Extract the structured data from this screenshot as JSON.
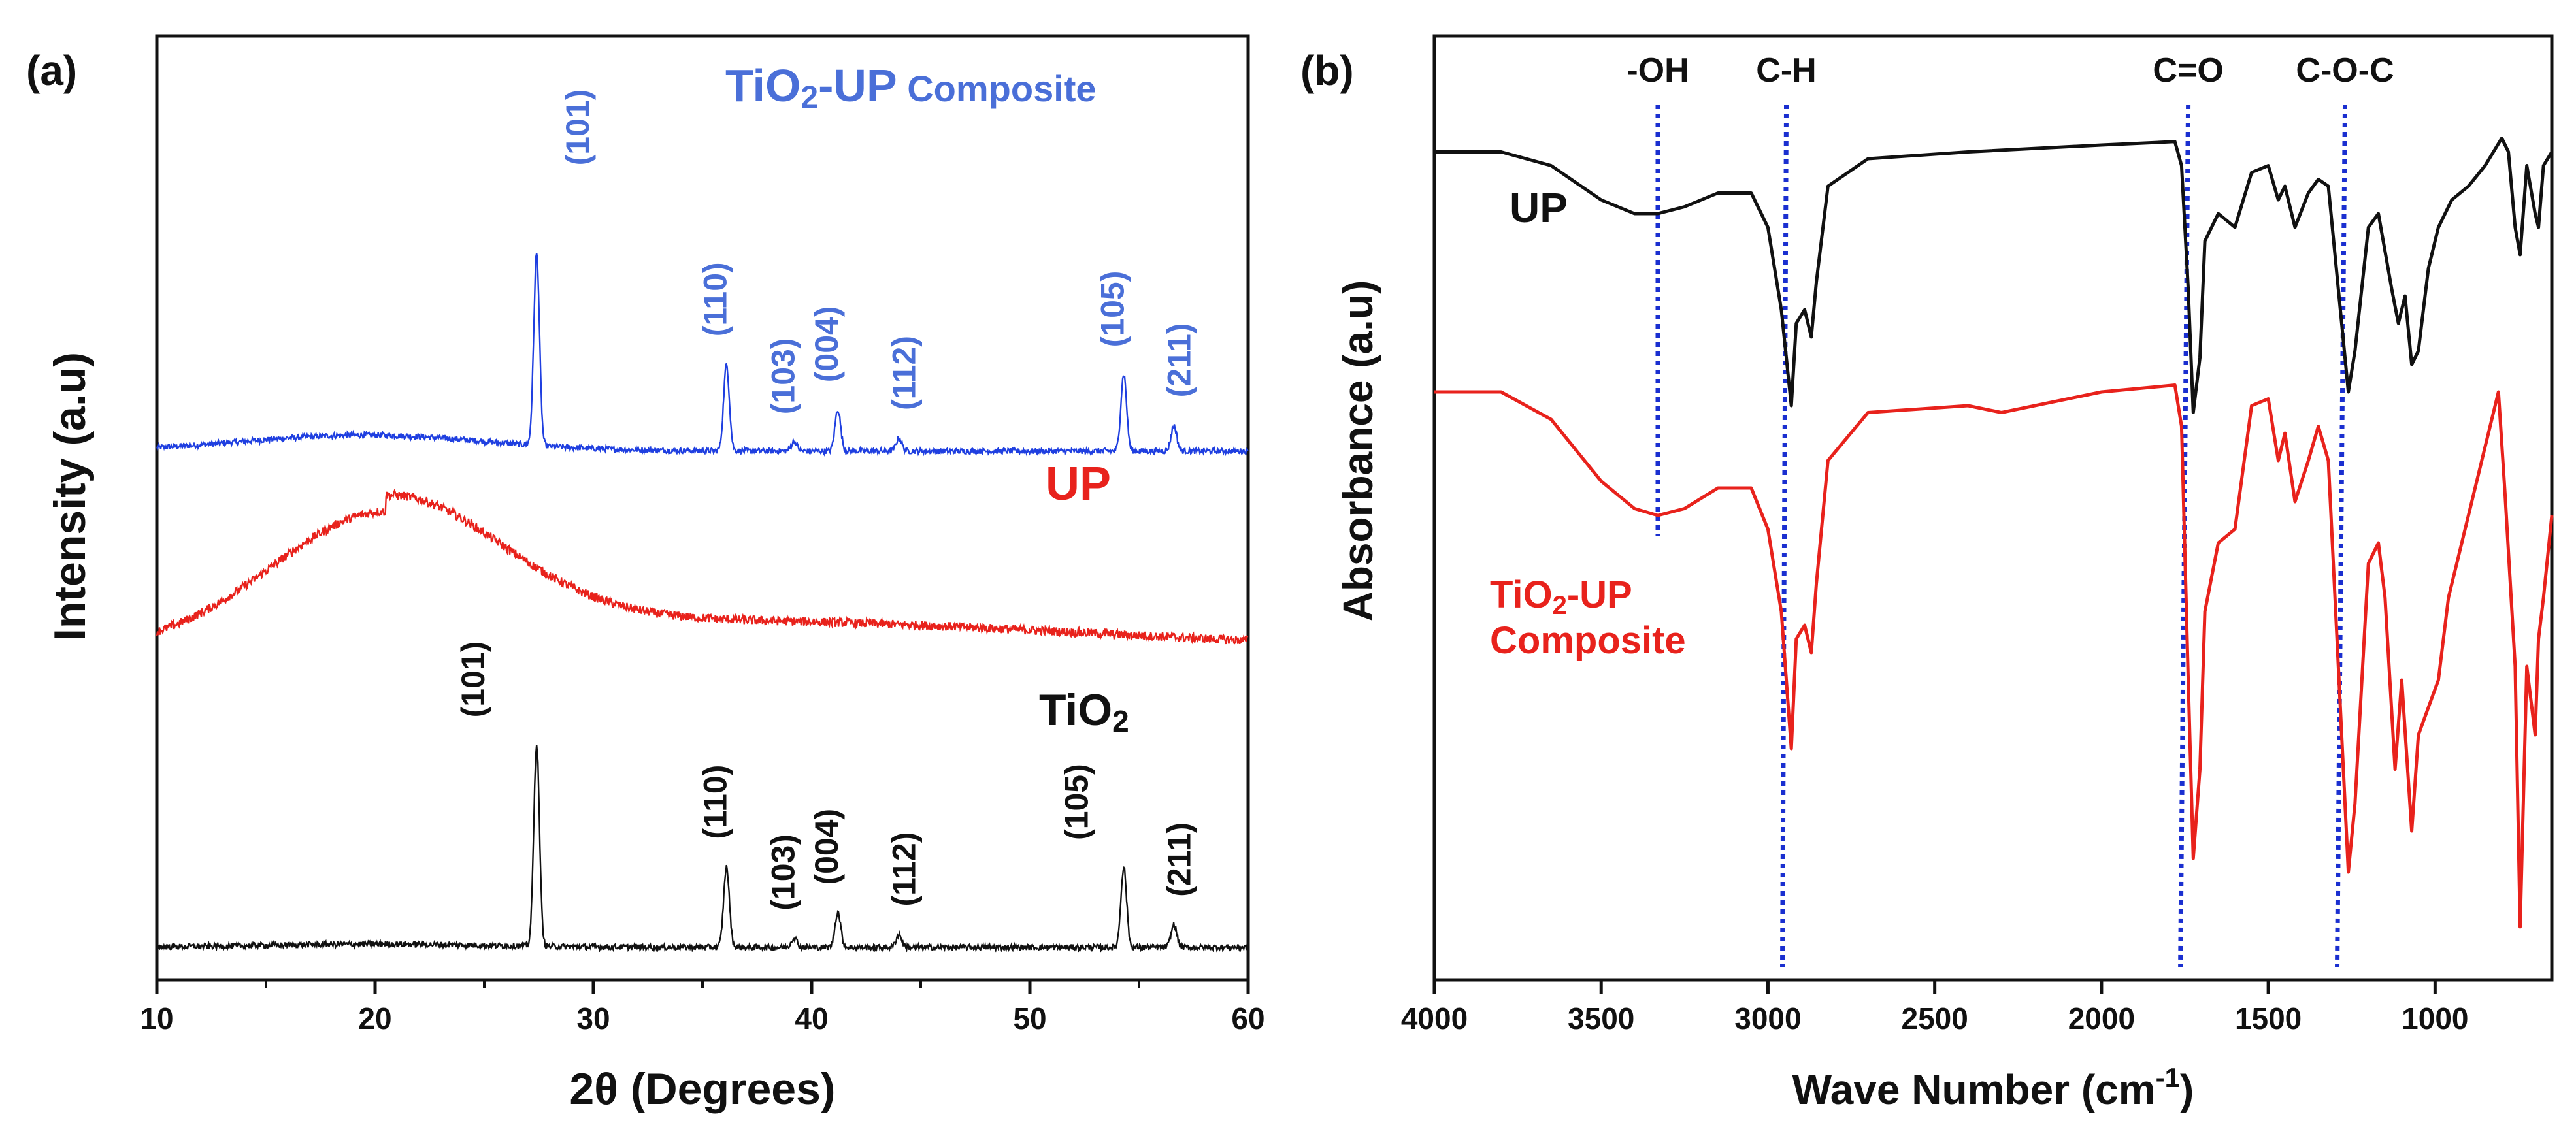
{
  "chart_data": [
    {
      "type": "line",
      "panel_label": "(a)",
      "title": "",
      "xlabel": "2θ (Degrees)",
      "ylabel": "Intensity (a.u)",
      "xlim": [
        10,
        60
      ],
      "xticks": [
        10,
        20,
        30,
        40,
        50,
        60
      ],
      "y_scale": "arbitrary units, curves stacked with vertical offsets",
      "series": [
        {
          "name": "TiO2-UP Composite",
          "color": "#1f3fe0",
          "label_color": "#4a6fd8",
          "offset": 1.55,
          "hump": {
            "center": 19.5,
            "height": 0.05,
            "width": 5.5
          },
          "peaks": [
            {
              "x": 27.4,
              "height": 0.6,
              "hkl": "(101)"
            },
            {
              "x": 36.1,
              "height": 0.27,
              "hkl": "(110)"
            },
            {
              "x": 39.2,
              "height": 0.03,
              "hkl": "(103)"
            },
            {
              "x": 41.2,
              "height": 0.13,
              "hkl": "(004)"
            },
            {
              "x": 44.0,
              "height": 0.04,
              "hkl": "(112)"
            },
            {
              "x": 54.3,
              "height": 0.24,
              "hkl": "(105)"
            },
            {
              "x": 56.6,
              "height": 0.08,
              "hkl": "(211)"
            }
          ]
        },
        {
          "name": "UP",
          "color": "#e8221c",
          "label_color": "#e8221c",
          "offset": 0.92,
          "hump": {
            "center": 20.5,
            "height": 0.42,
            "width": 5.2
          },
          "tail": {
            "height": 0.1,
            "center": 35,
            "width": 18
          },
          "peaks": []
        },
        {
          "name": "TiO2",
          "color": "#111111",
          "label_color": "#111111",
          "offset": 0.0,
          "hump": {
            "center": 20,
            "height": 0.01,
            "width": 5
          },
          "peaks": [
            {
              "x": 27.4,
              "height": 0.63,
              "hkl": "(101)"
            },
            {
              "x": 36.1,
              "height": 0.25,
              "hkl": "(110)"
            },
            {
              "x": 39.2,
              "height": 0.03,
              "hkl": "(103)"
            },
            {
              "x": 41.2,
              "height": 0.11,
              "hkl": "(004)"
            },
            {
              "x": 44.0,
              "height": 0.04,
              "hkl": "(112)"
            },
            {
              "x": 54.3,
              "height": 0.25,
              "hkl": "(105)"
            },
            {
              "x": 56.6,
              "height": 0.07,
              "hkl": "(211)"
            }
          ]
        }
      ],
      "series_labels": {
        "composite": {
          "main": "TiO",
          "sub": "2",
          "rest": "-UP",
          "small": " Composite"
        },
        "up": "UP",
        "tio2": {
          "main": "TiO",
          "sub": "2"
        }
      }
    },
    {
      "type": "line",
      "panel_label": "(b)",
      "title": "",
      "xlabel": "Wave Number (cm",
      "xlabel_sup": "-1",
      "xlabel_close": ")",
      "ylabel": "Absorbance (a.u)",
      "xlim": [
        4000,
        650
      ],
      "xticks": [
        4000,
        3500,
        3000,
        2500,
        2000,
        1500,
        1000
      ],
      "x_reversed": true,
      "reference_lines": [
        {
          "label": "-OH",
          "x": 3330,
          "color": "#1a2fd0"
        },
        {
          "label": "C-H",
          "x": 2945,
          "color": "#1a2fd0"
        },
        {
          "label": "C=O",
          "x": 1740,
          "color": "#1a2fd0"
        },
        {
          "label": "C-O-C",
          "x": 1270,
          "color": "#1a2fd0"
        }
      ],
      "series": [
        {
          "name": "UP",
          "color": "#111111",
          "baseline": 0.95,
          "points": [
            [
              4000,
              0.95
            ],
            [
              3800,
              0.95
            ],
            [
              3650,
              0.93
            ],
            [
              3500,
              0.88
            ],
            [
              3400,
              0.86
            ],
            [
              3330,
              0.86
            ],
            [
              3250,
              0.87
            ],
            [
              3150,
              0.89
            ],
            [
              3050,
              0.89
            ],
            [
              3000,
              0.84
            ],
            [
              2960,
              0.72
            ],
            [
              2930,
              0.58
            ],
            [
              2915,
              0.7
            ],
            [
              2890,
              0.72
            ],
            [
              2870,
              0.68
            ],
            [
              2855,
              0.76
            ],
            [
              2820,
              0.9
            ],
            [
              2700,
              0.94
            ],
            [
              2400,
              0.95
            ],
            [
              2000,
              0.96
            ],
            [
              1780,
              0.965
            ],
            [
              1760,
              0.93
            ],
            [
              1740,
              0.75
            ],
            [
              1725,
              0.57
            ],
            [
              1705,
              0.65
            ],
            [
              1690,
              0.82
            ],
            [
              1650,
              0.86
            ],
            [
              1600,
              0.84
            ],
            [
              1550,
              0.92
            ],
            [
              1500,
              0.93
            ],
            [
              1470,
              0.88
            ],
            [
              1450,
              0.9
            ],
            [
              1420,
              0.84
            ],
            [
              1380,
              0.89
            ],
            [
              1350,
              0.91
            ],
            [
              1320,
              0.9
            ],
            [
              1290,
              0.75
            ],
            [
              1260,
              0.6
            ],
            [
              1240,
              0.66
            ],
            [
              1200,
              0.84
            ],
            [
              1170,
              0.86
            ],
            [
              1130,
              0.75
            ],
            [
              1110,
              0.7
            ],
            [
              1090,
              0.74
            ],
            [
              1070,
              0.64
            ],
            [
              1050,
              0.66
            ],
            [
              1020,
              0.78
            ],
            [
              990,
              0.84
            ],
            [
              950,
              0.88
            ],
            [
              900,
              0.9
            ],
            [
              850,
              0.93
            ],
            [
              800,
              0.97
            ],
            [
              780,
              0.95
            ],
            [
              760,
              0.84
            ],
            [
              745,
              0.8
            ],
            [
              725,
              0.93
            ],
            [
              700,
              0.86
            ],
            [
              690,
              0.84
            ],
            [
              675,
              0.93
            ],
            [
              650,
              0.95
            ]
          ]
        },
        {
          "name": "TiO2-UP Composite",
          "color": "#e8221c",
          "baseline": 0.6,
          "points": [
            [
              4000,
              0.6
            ],
            [
              3800,
              0.6
            ],
            [
              3650,
              0.56
            ],
            [
              3500,
              0.47
            ],
            [
              3400,
              0.43
            ],
            [
              3330,
              0.42
            ],
            [
              3250,
              0.43
            ],
            [
              3150,
              0.46
            ],
            [
              3050,
              0.46
            ],
            [
              3000,
              0.4
            ],
            [
              2960,
              0.28
            ],
            [
              2930,
              0.08
            ],
            [
              2915,
              0.24
            ],
            [
              2890,
              0.26
            ],
            [
              2870,
              0.22
            ],
            [
              2855,
              0.32
            ],
            [
              2820,
              0.5
            ],
            [
              2700,
              0.57
            ],
            [
              2400,
              0.58
            ],
            [
              2300,
              0.57
            ],
            [
              2000,
              0.6
            ],
            [
              1780,
              0.61
            ],
            [
              1760,
              0.55
            ],
            [
              1740,
              0.18
            ],
            [
              1725,
              -0.08
            ],
            [
              1705,
              0.05
            ],
            [
              1690,
              0.28
            ],
            [
              1650,
              0.38
            ],
            [
              1600,
              0.4
            ],
            [
              1550,
              0.58
            ],
            [
              1500,
              0.59
            ],
            [
              1470,
              0.5
            ],
            [
              1450,
              0.54
            ],
            [
              1420,
              0.44
            ],
            [
              1380,
              0.5
            ],
            [
              1350,
              0.55
            ],
            [
              1320,
              0.5
            ],
            [
              1290,
              0.2
            ],
            [
              1260,
              -0.1
            ],
            [
              1240,
              0.0
            ],
            [
              1200,
              0.35
            ],
            [
              1170,
              0.38
            ],
            [
              1150,
              0.3
            ],
            [
              1120,
              0.05
            ],
            [
              1100,
              0.18
            ],
            [
              1070,
              -0.04
            ],
            [
              1050,
              0.1
            ],
            [
              1020,
              0.14
            ],
            [
              990,
              0.18
            ],
            [
              960,
              0.3
            ],
            [
              900,
              0.42
            ],
            [
              850,
              0.52
            ],
            [
              810,
              0.6
            ],
            [
              790,
              0.45
            ],
            [
              760,
              0.2
            ],
            [
              745,
              -0.18
            ],
            [
              725,
              0.2
            ],
            [
              700,
              0.1
            ],
            [
              690,
              0.24
            ],
            [
              675,
              0.3
            ],
            [
              650,
              0.42
            ]
          ]
        }
      ],
      "series_labels": {
        "up": "UP",
        "composite_line1_main": "TiO",
        "composite_line1_sub": "2",
        "composite_line1_rest": "-UP",
        "composite_line2": "Composite"
      }
    }
  ],
  "colors": {
    "axis": "#111111",
    "blue_label": "#4a6fd8",
    "red": "#e8221c",
    "dotted": "#1a2fd0"
  }
}
